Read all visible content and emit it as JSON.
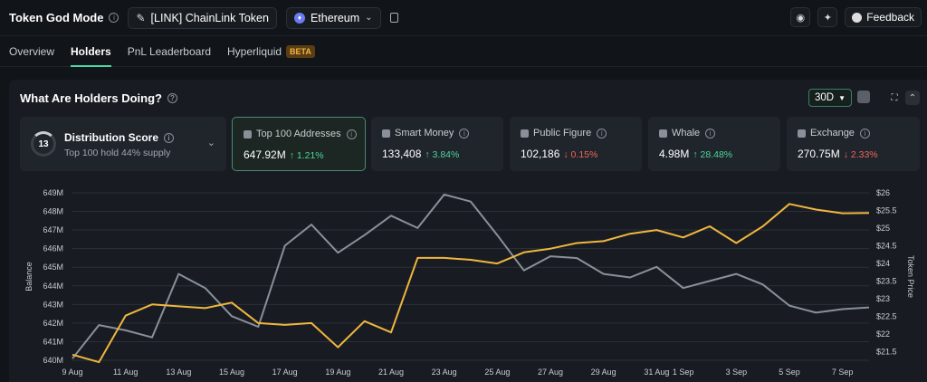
{
  "header": {
    "title": "Token God Mode",
    "token_label": "[LINK] ChainLink Token",
    "chain_label": "Ethereum",
    "feedback_label": "Feedback"
  },
  "nav": {
    "tabs": [
      {
        "label": "Overview",
        "active": false
      },
      {
        "label": "Holders",
        "active": true
      },
      {
        "label": "PnL Leaderboard",
        "active": false
      },
      {
        "label": "Hyperliquid",
        "active": false,
        "badge": "BETA"
      }
    ]
  },
  "panel": {
    "title": "What Are Holders Doing?",
    "range": "30D"
  },
  "distribution": {
    "score": "13",
    "title": "Distribution Score",
    "subtitle": "Top 100 hold 44% supply"
  },
  "cards": [
    {
      "label": "Top 100 Addresses",
      "value": "647.92M",
      "change": "↑ 1.21%",
      "direction": "up",
      "icon": "wallet-icon"
    },
    {
      "label": "Smart Money",
      "value": "133,408",
      "change": "↑ 3.84%",
      "direction": "up",
      "icon": "brain-icon"
    },
    {
      "label": "Public Figure",
      "value": "102,186",
      "change": "↓ 0.15%",
      "direction": "down",
      "icon": "figure-icon"
    },
    {
      "label": "Whale",
      "value": "4.98M",
      "change": "↑ 28.48%",
      "direction": "up",
      "icon": "whale-icon"
    },
    {
      "label": "Exchange",
      "value": "270.75M",
      "change": "↓ 2.33%",
      "direction": "down",
      "icon": "bank-icon"
    }
  ],
  "colors": {
    "balance_line": "#f0b63f",
    "price_line": "#8a9099",
    "accent": "#4bd8a4"
  },
  "chart_data": {
    "type": "line",
    "ylabel": "Balance",
    "y2label": "Token Price",
    "ylim": [
      640,
      649
    ],
    "y2lim": [
      21.25,
      26
    ],
    "y_ticks": [
      "640M",
      "641M",
      "642M",
      "643M",
      "644M",
      "645M",
      "646M",
      "647M",
      "648M",
      "649M"
    ],
    "y2_ticks": [
      "$21.5",
      "$22",
      "$22.5",
      "$23",
      "$23.5",
      "$24",
      "$24.5",
      "$25",
      "$25.5",
      "$26"
    ],
    "x_ticks": [
      "9 Aug",
      "11 Aug",
      "13 Aug",
      "15 Aug",
      "17 Aug",
      "19 Aug",
      "21 Aug",
      "23 Aug",
      "25 Aug",
      "27 Aug",
      "29 Aug",
      "31 Aug",
      "1 Sep",
      "3 Sep",
      "5 Sep",
      "7 Sep"
    ],
    "x_tick_days": [
      0,
      2,
      4,
      6,
      8,
      10,
      12,
      14,
      16,
      18,
      20,
      22,
      23,
      25,
      27,
      29
    ],
    "grid": true,
    "series": [
      {
        "axis": "left",
        "days": [
          0,
          1,
          2,
          3,
          4,
          5,
          6,
          7,
          8,
          9,
          10,
          11,
          12,
          13,
          14,
          15,
          16,
          17,
          18,
          19,
          20,
          21,
          22,
          23,
          24,
          25,
          26,
          27,
          28,
          29,
          30
        ],
        "values": [
          640.3,
          639.9,
          642.4,
          643.0,
          642.9,
          642.8,
          643.1,
          642.0,
          641.9,
          642.0,
          640.7,
          642.1,
          641.5,
          645.5,
          645.5,
          645.4,
          645.2,
          645.8,
          646.0,
          646.3,
          646.4,
          646.8,
          647.0,
          646.6,
          647.2,
          646.3,
          647.2,
          648.4,
          648.1,
          647.9,
          647.92
        ]
      },
      {
        "axis": "right",
        "days": [
          0,
          1,
          2,
          3,
          4,
          5,
          6,
          7,
          8,
          9,
          10,
          11,
          12,
          13,
          14,
          15,
          16,
          17,
          18,
          19,
          20,
          21,
          22,
          23,
          24,
          25,
          26,
          27,
          28,
          29,
          30
        ],
        "values": [
          21.3,
          22.25,
          22.1,
          21.9,
          23.7,
          23.3,
          22.5,
          22.2,
          24.5,
          25.1,
          24.3,
          24.8,
          25.35,
          25.0,
          25.95,
          25.75,
          24.8,
          23.8,
          24.2,
          24.15,
          23.7,
          23.6,
          23.9,
          23.3,
          23.5,
          23.7,
          23.4,
          22.8,
          22.6,
          22.7,
          22.75
        ]
      }
    ]
  }
}
